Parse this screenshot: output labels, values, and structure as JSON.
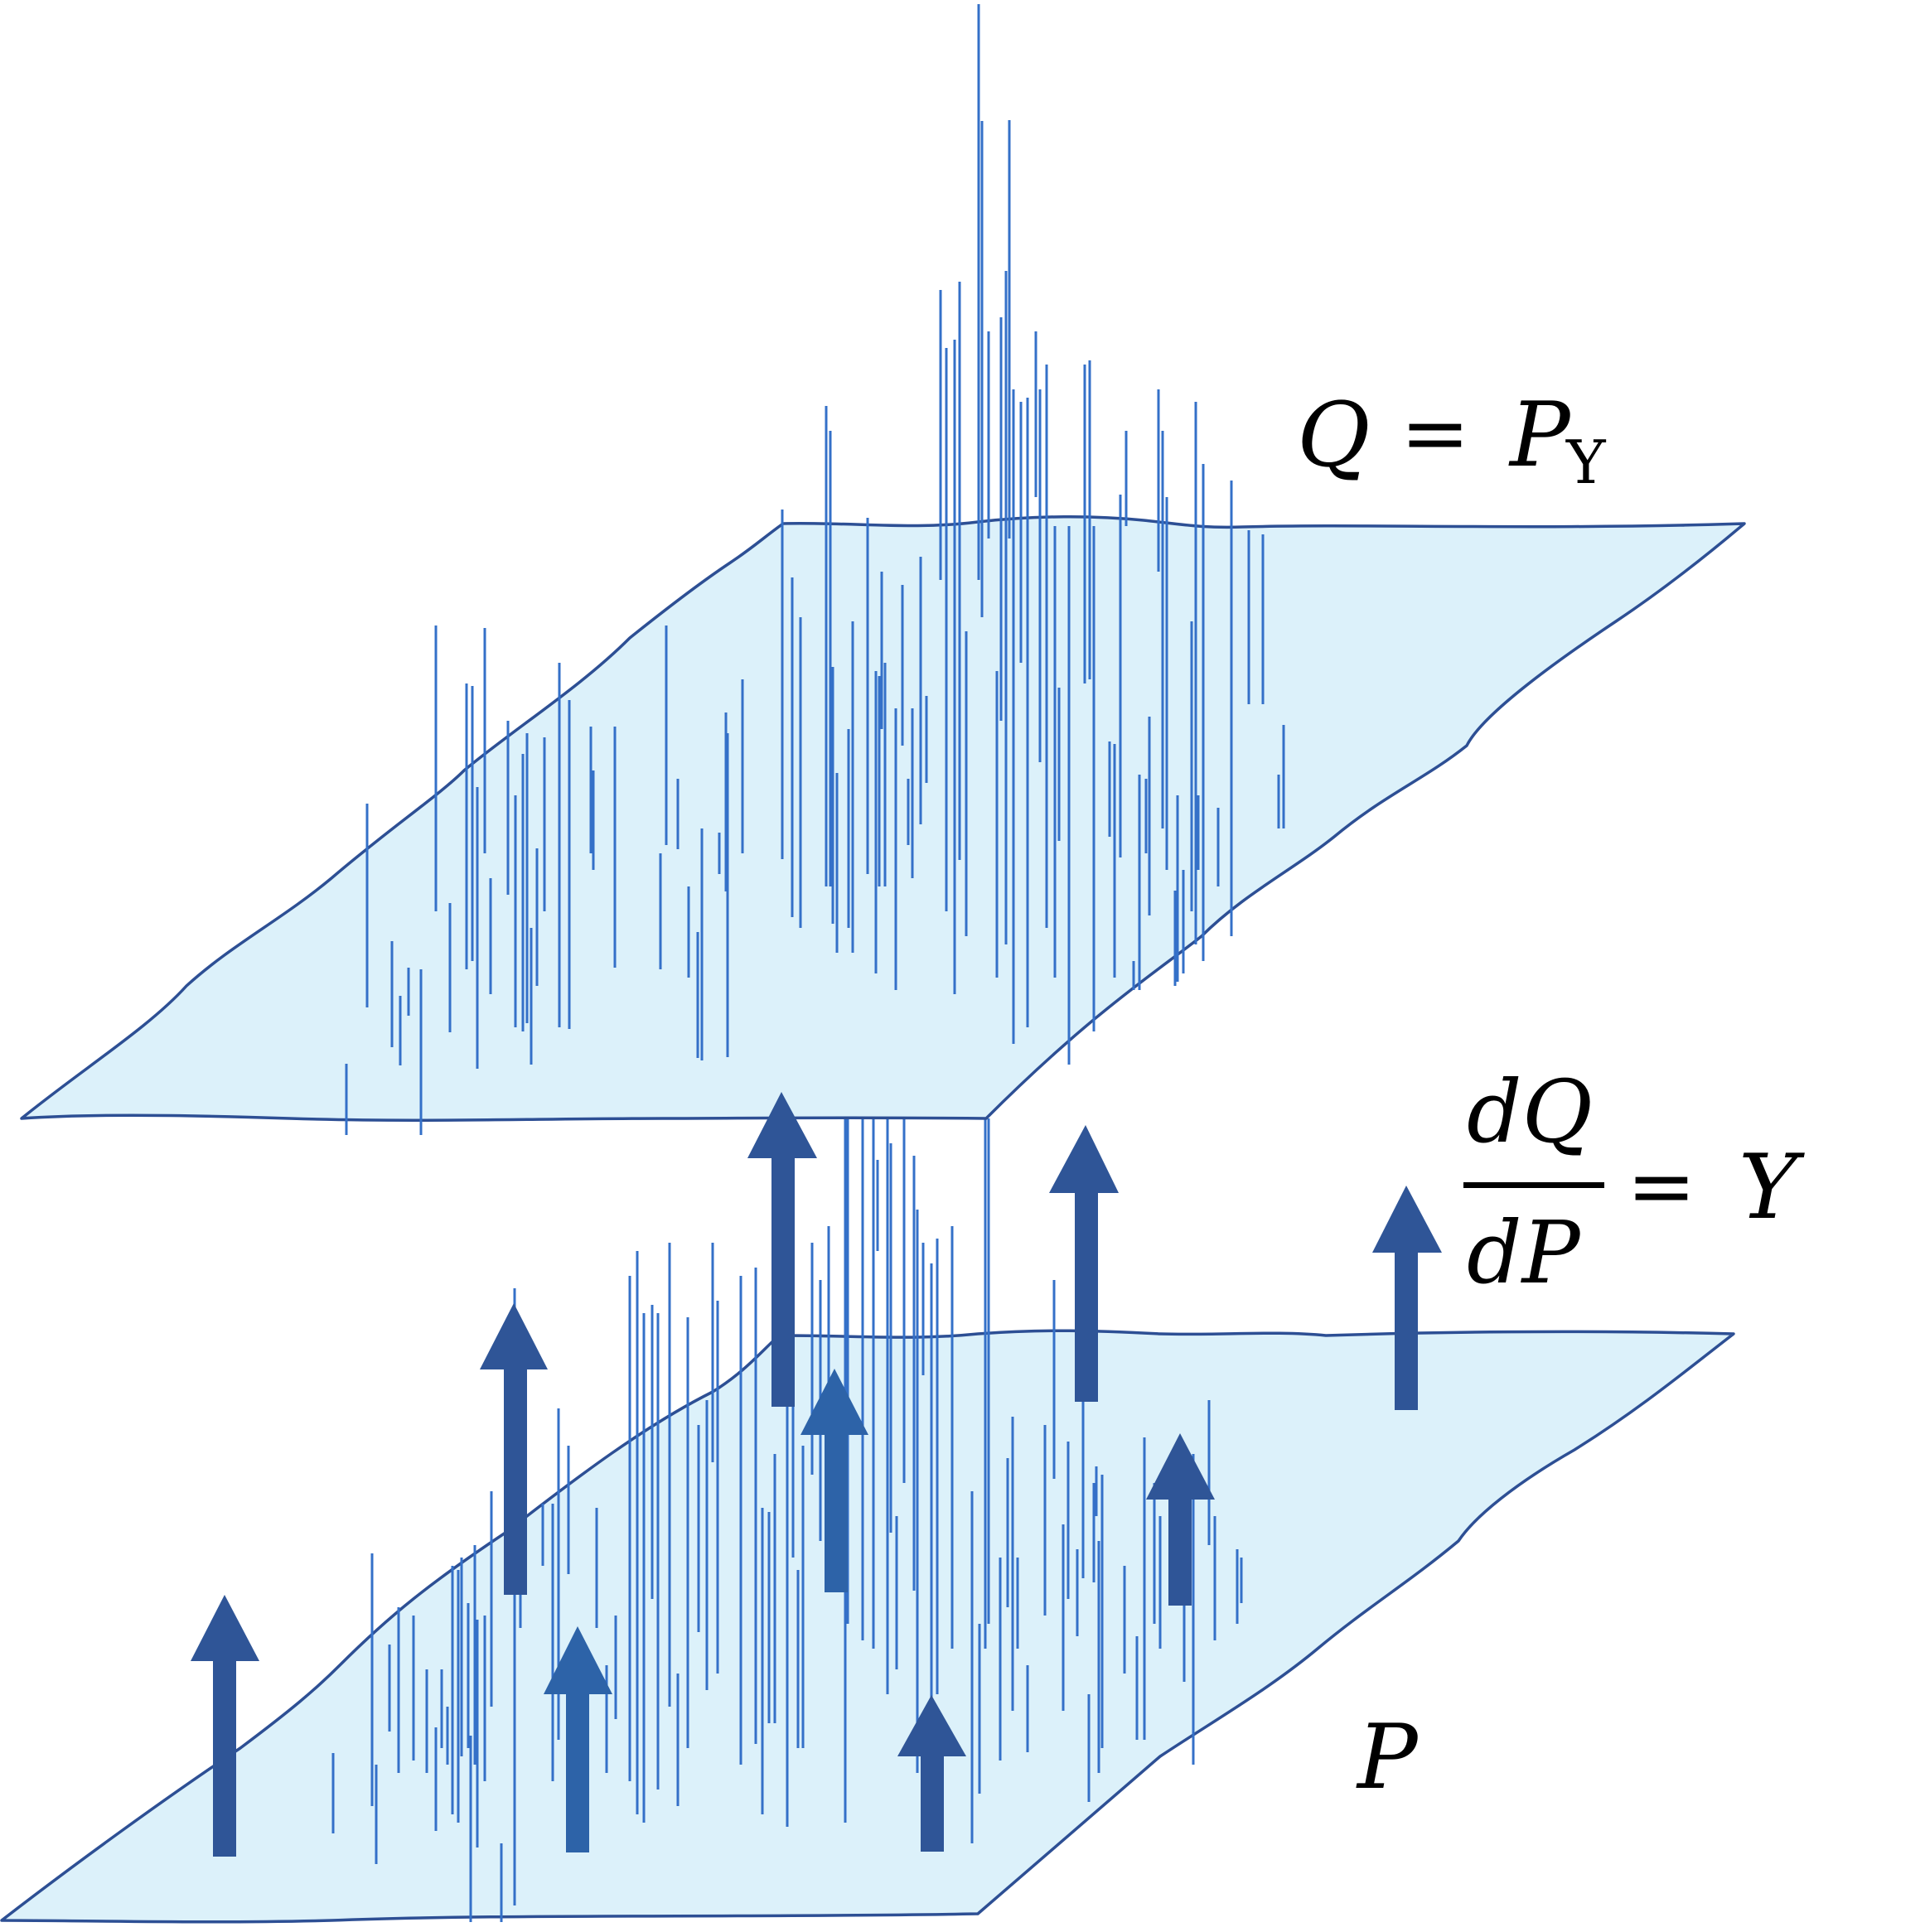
{
  "labels": {
    "upper_measure": {
      "lhs": "Q",
      "equals": "=",
      "rhs": "P",
      "rhs_subscript": "Y"
    },
    "derivative": {
      "numerator": "dQ",
      "denominator": "dP",
      "equals": "=",
      "rhs": "Y"
    },
    "lower_measure": "P"
  },
  "colors": {
    "plane_fill": "#dcf1fa",
    "plane_stroke": "#2d4f94",
    "spike": "#3470c8",
    "arrow_dark": "#2f5597",
    "arrow_mid": "#2d63a8",
    "text": "#000000"
  }
}
